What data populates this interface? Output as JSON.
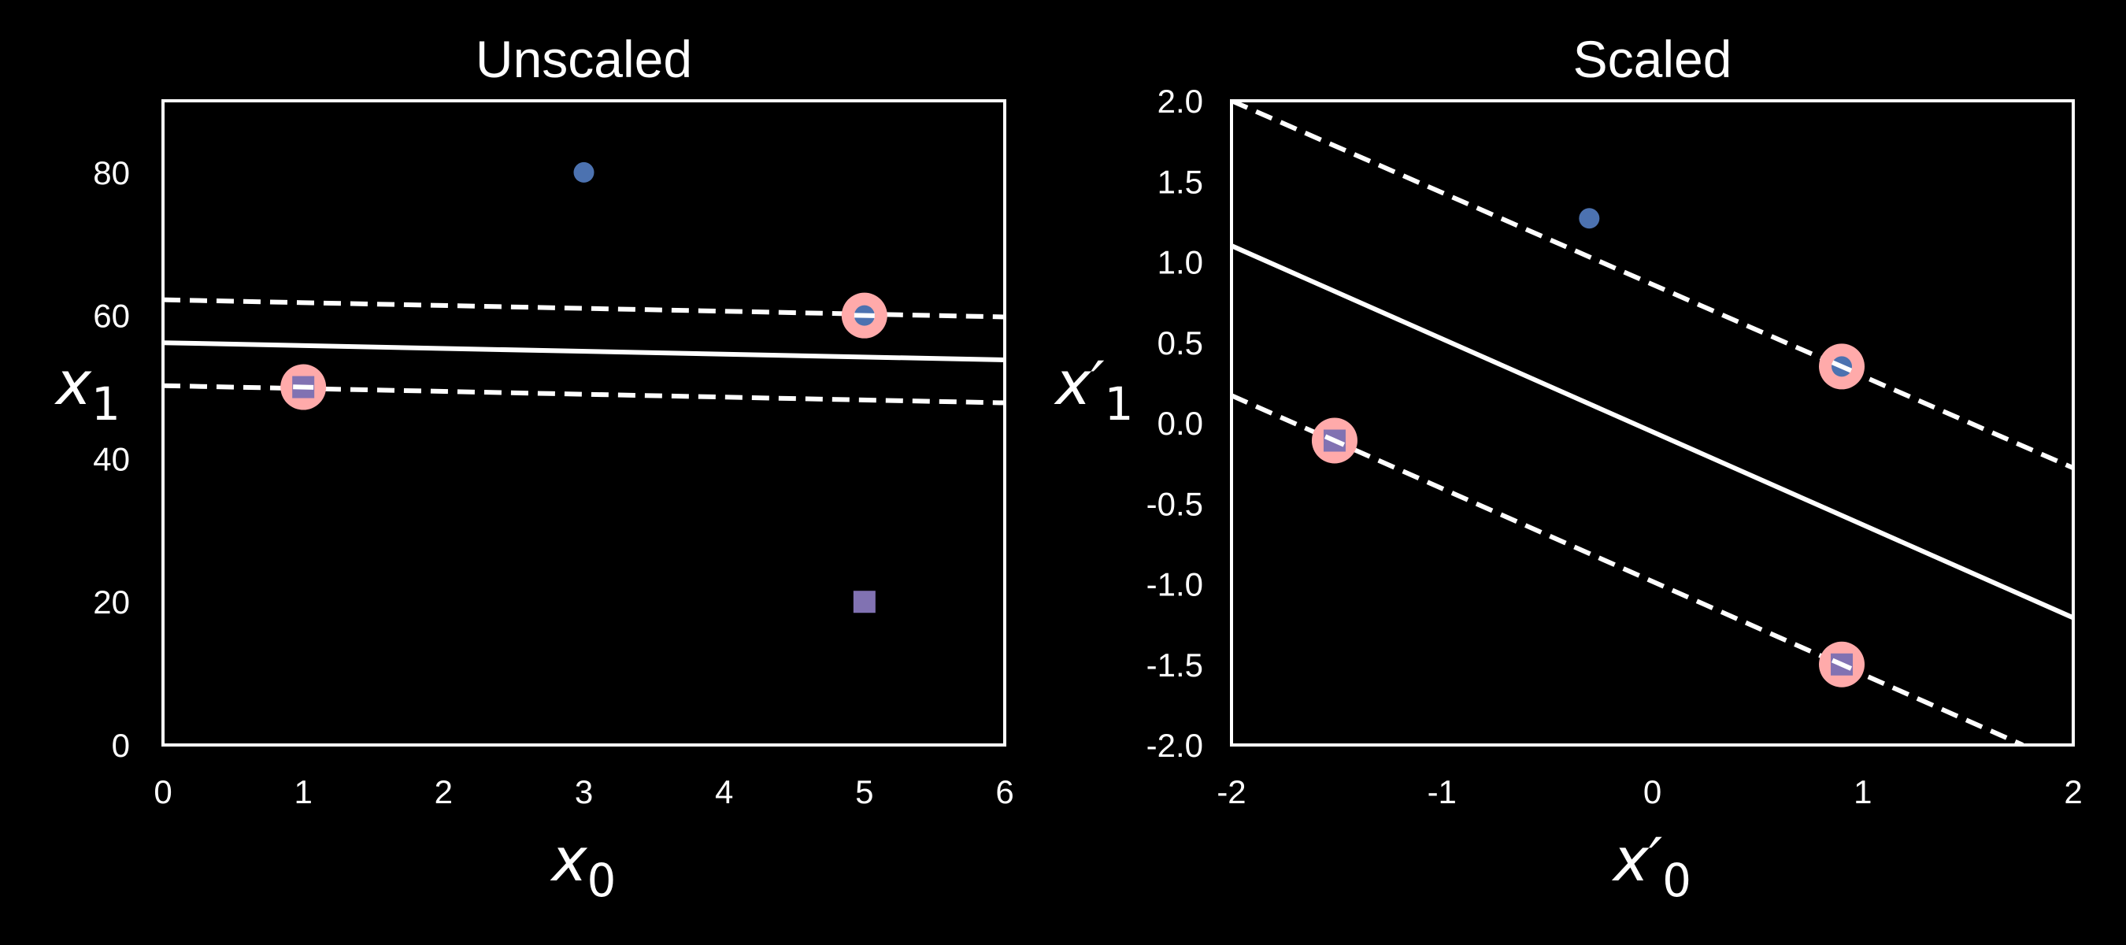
{
  "chart_data": [
    {
      "type": "scatter",
      "title": "Unscaled",
      "xlabel": "x",
      "xlabel_sub": "0",
      "ylabel": "x",
      "ylabel_sub": "1",
      "xlim": [
        0,
        6
      ],
      "ylim": [
        0,
        90
      ],
      "xticks": [
        0,
        1,
        2,
        3,
        4,
        5,
        6
      ],
      "xtick_labels": [
        "0",
        "1",
        "2",
        "3",
        "4",
        "5",
        "6"
      ],
      "yticks": [
        0,
        20,
        40,
        60,
        80
      ],
      "ytick_labels": [
        "0",
        "20",
        "40",
        "60",
        "80"
      ],
      "grid": false,
      "points": [
        {
          "x": 3,
          "y": 80,
          "marker": "circle",
          "color": "#4c72b0",
          "support_vector": false
        },
        {
          "x": 5,
          "y": 60,
          "marker": "circle",
          "color": "#4c72b0",
          "support_vector": true
        },
        {
          "x": 1,
          "y": 50,
          "marker": "square",
          "color": "#8172b2",
          "support_vector": true
        },
        {
          "x": 5,
          "y": 20,
          "marker": "square",
          "color": "#8172b2",
          "support_vector": false
        }
      ],
      "lines": [
        {
          "style": "solid",
          "x": [
            0,
            6
          ],
          "y": [
            56.2,
            53.8
          ]
        },
        {
          "style": "dashed",
          "x": [
            0,
            6
          ],
          "y": [
            62.2,
            59.8
          ]
        },
        {
          "style": "dashed",
          "x": [
            0,
            6
          ],
          "y": [
            50.2,
            47.8
          ]
        }
      ]
    },
    {
      "type": "scatter",
      "title": "Scaled",
      "xlabel": "x′",
      "xlabel_sub": "0",
      "ylabel": "x′",
      "ylabel_sub": "1",
      "xlim": [
        -2,
        2
      ],
      "ylim": [
        -2,
        2
      ],
      "xticks": [
        -2,
        -1,
        0,
        1,
        2
      ],
      "xtick_labels": [
        "-2",
        "-1",
        "0",
        "1",
        "2"
      ],
      "yticks": [
        2.0,
        1.5,
        1.0,
        0.5,
        0.0,
        -0.5,
        -1.0,
        -1.5,
        -2.0
      ],
      "ytick_labels": [
        "2.0",
        "1.5",
        "1.0",
        "0.5",
        "0.0",
        "-0.5",
        "-1.0",
        "-1.5",
        "-2.0"
      ],
      "grid": false,
      "points": [
        {
          "x": -0.3,
          "y": 1.27,
          "marker": "circle",
          "color": "#4c72b0",
          "support_vector": false
        },
        {
          "x": 0.9,
          "y": 0.35,
          "marker": "circle",
          "color": "#4c72b0",
          "support_vector": true
        },
        {
          "x": -1.51,
          "y": -0.11,
          "marker": "square",
          "color": "#8172b2",
          "support_vector": true
        },
        {
          "x": 0.9,
          "y": -1.5,
          "marker": "square",
          "color": "#8172b2",
          "support_vector": true
        }
      ],
      "lines": [
        {
          "style": "solid",
          "x": [
            -2,
            2
          ],
          "y": [
            1.1,
            -1.21
          ]
        },
        {
          "style": "dashed",
          "x": [
            -2,
            2
          ],
          "y": [
            2.0,
            -0.28
          ]
        },
        {
          "style": "dashed",
          "x": [
            -2,
            1.76
          ],
          "y": [
            0.17,
            -2.0
          ]
        }
      ]
    }
  ],
  "colors": {
    "background": "#000000",
    "axes": "#ffffff",
    "class_a": "#4c72b0",
    "class_b": "#8172b2",
    "support_vector_highlight": "#ffaaaa"
  }
}
